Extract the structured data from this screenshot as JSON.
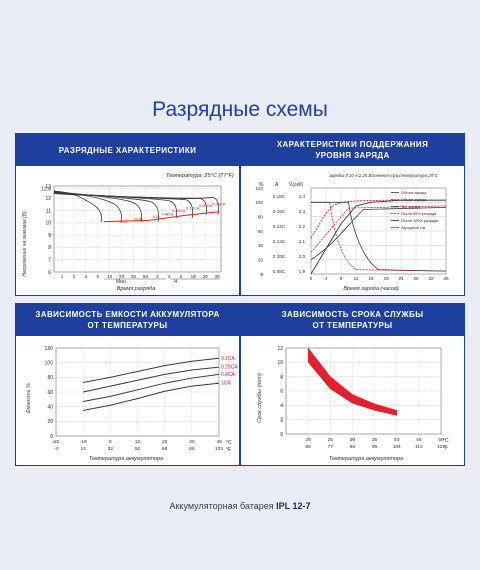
{
  "page": {
    "title": "Разрядные схемы",
    "footer_prefix": "Аккумуляторная батарея ",
    "footer_model": "IPL 12-7"
  },
  "colors": {
    "brand_blue": "#1e3f9e",
    "accent_red": "#e4202d",
    "line_dark": "#3a3a3a"
  },
  "panels": {
    "discharge": {
      "title": "РАЗРЯДНЫЕ ХАРАКТЕРИСТИКИ",
      "temperature_note": "Температура: 25°C (77°F)"
    },
    "charge": {
      "title_line1": "ХАРАКТЕРИСТИКИ ПОДДЕРЖАНИЯ",
      "title_line2": "УРОВНЯ ЗАРЯДА",
      "condition_note": "зарядка 0,10 A-2,25 В/элемент при температуре 25°C"
    },
    "capacity": {
      "title_line1": "ЗАВИСИМОСТЬ ЕМКОСТИ АККУМУЛЯТОРА",
      "title_line2": "ОТ ТЕМПЕРАТУРЫ"
    },
    "life": {
      "title_line1": "ЗАВИСИМОСТЬ СРОКА СЛУЖБЫ",
      "title_line2": "ОТ ТЕМПЕРАТУРЫ"
    }
  },
  "chart_data": [
    {
      "type": "line",
      "title": "РАЗРЯДНЫЕ ХАРАКТЕРИСТИКИ",
      "ylabel": "Напряжение на зажимах (В)",
      "xlabel": "Время разряда",
      "x_units": [
        "Мин",
        "Ч"
      ],
      "ylim": [
        6,
        13
      ],
      "y_ticks": [
        "6",
        "7",
        "8",
        "9",
        "10",
        "11",
        "12",
        "12.8",
        "13"
      ],
      "x_ticks": [
        "1",
        "2",
        "3",
        "5",
        "10",
        "20",
        "30",
        "60",
        "2",
        "3",
        "5",
        "10",
        "20",
        "30"
      ],
      "series": [
        {
          "name": "3CA",
          "end_voltage": 10.2
        },
        {
          "name": "2CA",
          "end_voltage": 10.2
        },
        {
          "name": "1CA",
          "end_voltage": 10.2
        },
        {
          "name": "0.6CA",
          "end_voltage": 10.2
        },
        {
          "name": "0.25CA",
          "end_voltage": 10.5
        },
        {
          "name": "0.17CA",
          "end_voltage": 10.5
        },
        {
          "name": "0.09CA",
          "end_voltage": 10.8
        },
        {
          "name": "0.05CA",
          "end_voltage": 10.8
        }
      ],
      "curve_labels": [
        "3CA",
        "2CA",
        "1CA",
        "0.6CA",
        "0.25CA",
        "0.17CA",
        "0.09CA",
        "0.05CA"
      ]
    },
    {
      "type": "line",
      "title": "ХАРАКТЕРИСТИКИ ПОДДЕРЖАНИЯ УРОВНЯ ЗАРЯДА",
      "xlabel": "Время заряда (часов)",
      "x_ticks": [
        "0",
        "4",
        "8",
        "12",
        "16",
        "20",
        "24",
        "28",
        "32",
        "36"
      ],
      "y_left_header": "%",
      "y_left_ticks": [
        "0",
        "20",
        "40",
        "60",
        "80",
        "100",
        "120"
      ],
      "y_mid_header": "V(cell)",
      "y_mid_ticks": [
        "2.4",
        "2.3",
        "2.2",
        "2.1",
        "2.0",
        "1.9"
      ],
      "y_right_header": "A",
      "y_right_ticks": [
        "0.18C",
        "0.16C",
        "0.14C",
        "0.12C",
        "0.10C",
        "0.08C"
      ],
      "legend": [
        "Объем заряда",
        "Объем заряда",
        "Ток заряда",
        "После 50% разряда",
        "После 100% разряда",
        "Зарядный ток"
      ],
      "series": [
        {
          "name": "После 50% разряда",
          "x": [
            0,
            4,
            6,
            8,
            12,
            20,
            36
          ],
          "y": [
            50,
            85,
            96,
            100,
            102,
            103,
            103
          ]
        },
        {
          "name": "После 100% разряда",
          "x": [
            0,
            4,
            8,
            12,
            16,
            24,
            36
          ],
          "y": [
            0,
            35,
            70,
            95,
            100,
            103,
            103
          ]
        }
      ]
    },
    {
      "type": "line",
      "title": "ЗАВИСИМОСТЬ ЕМКОСТИ АККУМУЛЯТОРА ОТ ТЕМПЕРАТУРЫ",
      "ylabel": "Емкость %",
      "xlabel": "Температура аккумулятора",
      "x_ticks_c": [
        "-20",
        "-10",
        "0",
        "10",
        "20",
        "30",
        "40"
      ],
      "x_ticks_f": [
        "-4",
        "14",
        "32",
        "50",
        "68",
        "86",
        "104"
      ],
      "x_units": [
        "°C",
        "°F"
      ],
      "ylim": [
        0,
        120
      ],
      "y_ticks": [
        "0",
        "20",
        "40",
        "60",
        "80",
        "100",
        "120"
      ],
      "series": [
        {
          "name": "0.1CA",
          "x": [
            -10,
            0,
            10,
            20,
            30,
            40
          ],
          "y": [
            73,
            80,
            88,
            96,
            102,
            106
          ]
        },
        {
          "name": "0.25CA",
          "x": [
            -10,
            0,
            10,
            20,
            30,
            40
          ],
          "y": [
            60,
            68,
            76,
            84,
            90,
            94
          ]
        },
        {
          "name": "0.6CA",
          "x": [
            -10,
            0,
            10,
            20,
            30,
            40
          ],
          "y": [
            47,
            54,
            63,
            72,
            79,
            84
          ]
        },
        {
          "name": "1CA",
          "x": [
            -10,
            0,
            10,
            20,
            30,
            40
          ],
          "y": [
            35,
            42,
            51,
            61,
            68,
            72
          ]
        }
      ]
    },
    {
      "type": "area",
      "title": "ЗАВИСИМОСТЬ СРОКА СЛУЖБЫ ОТ ТЕМПЕРАТУРЫ",
      "ylabel": "Срок службы (лет)",
      "xlabel": "Температура аккумулятора",
      "x_ticks_c": [
        "20",
        "25",
        "30",
        "35",
        "40",
        "45",
        "50"
      ],
      "x_ticks_f": [
        "68",
        "77",
        "86",
        "95",
        "104",
        "113",
        "122"
      ],
      "x_units": [
        "°C",
        "°F"
      ],
      "ylim": [
        0,
        12
      ],
      "y_ticks": [
        "0",
        "2",
        "4",
        "6",
        "8",
        "10",
        "12"
      ],
      "series": [
        {
          "name": "upper",
          "x": [
            20,
            25,
            30,
            35,
            40
          ],
          "y": [
            12,
            8,
            5.5,
            4.2,
            3.3
          ]
        },
        {
          "name": "lower",
          "x": [
            20,
            25,
            30,
            35,
            40
          ],
          "y": [
            10,
            6.3,
            4.3,
            3.3,
            2.6
          ]
        }
      ]
    }
  ]
}
